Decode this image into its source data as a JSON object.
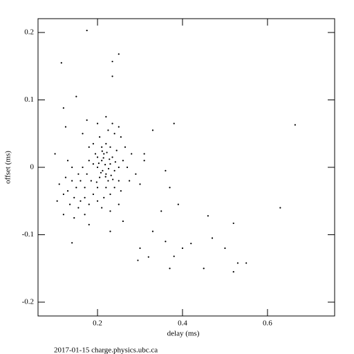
{
  "chart_data": {
    "type": "scatter",
    "xlabel": "delay (ms)",
    "ylabel": "offset (ms)",
    "footer": "2017-01-15 charge.physics.ubc.ca",
    "color": "#000000",
    "xlim": [
      0.06,
      0.758
    ],
    "ylim": [
      -0.2205,
      0.2205
    ],
    "xticks": [
      0.2,
      0.4,
      0.6
    ],
    "yticks": [
      -0.2,
      -0.1,
      0,
      0.1,
      0.2
    ],
    "x": [
      0.175,
      0.115,
      0.25,
      0.235,
      0.235,
      0.665,
      0.63,
      0.52,
      0.53,
      0.55,
      0.52,
      0.45,
      0.42,
      0.38,
      0.37,
      0.3,
      0.295,
      0.32,
      0.14,
      0.35,
      0.39,
      0.36,
      0.4,
      0.46,
      0.5,
      0.47,
      0.33,
      0.38,
      0.12,
      0.15,
      0.31,
      0.36,
      0.37,
      0.33,
      0.23,
      0.26,
      0.18,
      0.2,
      0.21,
      0.22,
      0.23,
      0.215,
      0.225,
      0.205,
      0.235,
      0.24,
      0.19,
      0.195,
      0.21,
      0.22,
      0.23,
      0.245,
      0.25,
      0.25,
      0.24,
      0.22,
      0.2,
      0.185,
      0.18,
      0.175,
      0.17,
      0.16,
      0.15,
      0.14,
      0.13,
      0.145,
      0.16,
      0.17,
      0.155,
      0.165,
      0.14,
      0.125,
      0.12,
      0.135,
      0.155,
      0.18,
      0.19,
      0.2,
      0.215,
      0.23,
      0.255,
      0.26,
      0.265,
      0.255,
      0.24,
      0.225,
      0.205,
      0.19,
      0.18,
      0.2,
      0.22,
      0.235,
      0.25,
      0.27,
      0.275,
      0.28,
      0.29,
      0.3,
      0.31,
      0.11,
      0.1,
      0.105,
      0.13,
      0.125,
      0.165,
      0.175,
      0.21,
      0.23,
      0.25,
      0.17,
      0.145,
      0.12,
      0.2,
      0.212,
      0.228,
      0.218,
      0.208,
      0.232,
      0.222,
      0.198,
      0.242,
      0.226,
      0.214,
      0.203,
      0.236,
      0.219,
      0.211
    ],
    "values": [
      0.203,
      0.155,
      0.168,
      0.157,
      0.135,
      0.063,
      -0.06,
      -0.083,
      -0.142,
      -0.142,
      -0.155,
      -0.15,
      -0.113,
      -0.132,
      -0.15,
      -0.12,
      -0.138,
      -0.133,
      -0.112,
      -0.065,
      -0.055,
      -0.11,
      -0.12,
      -0.072,
      -0.12,
      -0.105,
      0.055,
      0.065,
      0.088,
      0.105,
      0.02,
      -0.005,
      -0.03,
      -0.095,
      -0.095,
      -0.08,
      -0.085,
      0.0,
      0.01,
      -0.01,
      0.005,
      0.02,
      -0.02,
      -0.015,
      0.015,
      -0.005,
      0.005,
      0.02,
      0.03,
      0.035,
      0.03,
      0.025,
      0.0,
      -0.02,
      -0.03,
      -0.03,
      -0.03,
      -0.02,
      0.01,
      -0.01,
      -0.03,
      -0.02,
      -0.03,
      -0.02,
      -0.035,
      -0.045,
      -0.05,
      -0.045,
      -0.01,
      0.0,
      0.0,
      -0.015,
      -0.04,
      -0.055,
      -0.06,
      -0.055,
      -0.04,
      -0.05,
      -0.045,
      -0.04,
      -0.035,
      0.01,
      0.03,
      0.045,
      0.05,
      0.055,
      0.045,
      0.035,
      0.03,
      0.065,
      0.075,
      0.065,
      0.06,
      0.0,
      -0.02,
      0.02,
      -0.01,
      -0.025,
      0.01,
      -0.025,
      0.02,
      -0.05,
      0.01,
      0.06,
      0.05,
      0.07,
      -0.06,
      -0.065,
      -0.055,
      -0.07,
      -0.075,
      -0.07,
      0.015,
      -0.005,
      0.012,
      0.004,
      -0.008,
      -0.012,
      0.022,
      -0.022,
      0.008,
      -0.002,
      0.014,
      0.006,
      -0.018,
      -0.014,
      0.024
    ]
  }
}
